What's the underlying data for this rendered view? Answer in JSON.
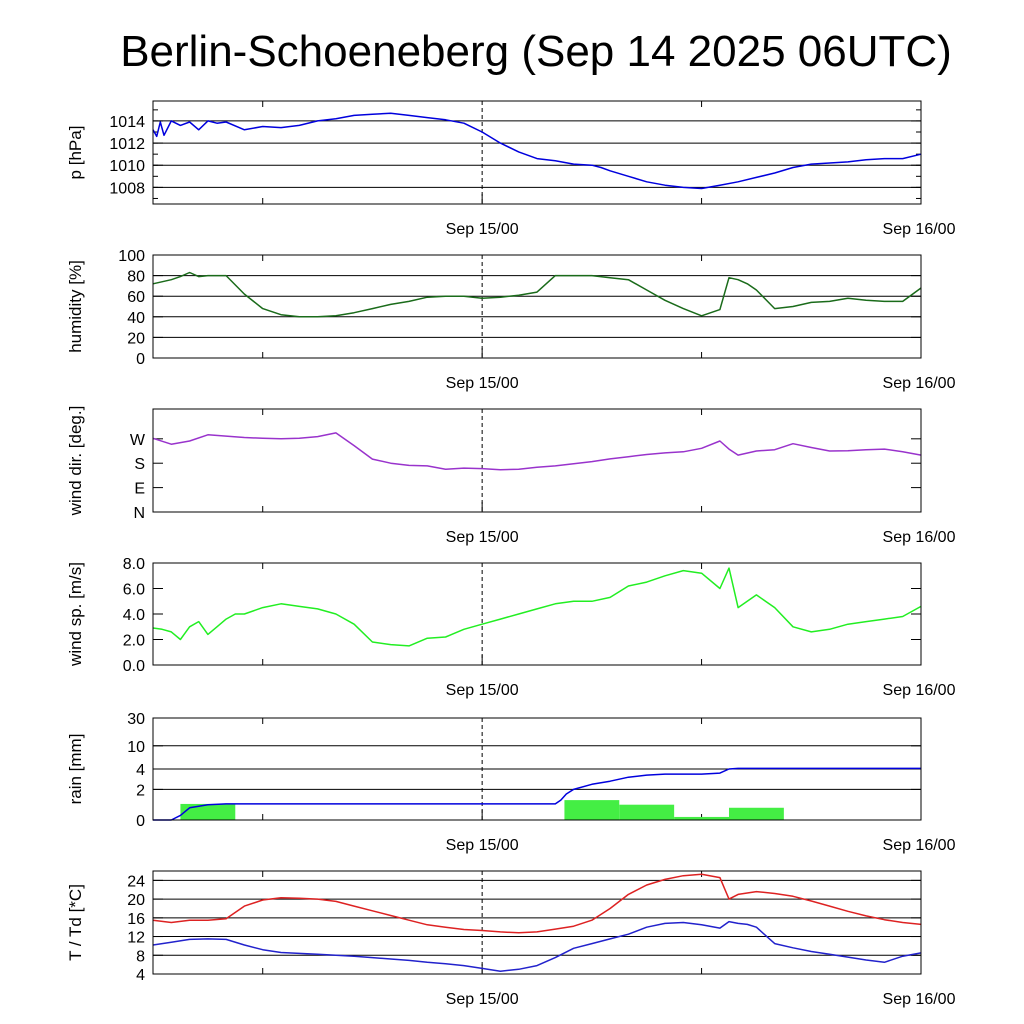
{
  "chart_data": {
    "title": "Berlin-Schoeneberg (Sep 14 2025 06UTC)",
    "x_ticks": [
      "Sep 15/00",
      "Sep 16/00"
    ],
    "x_range_hours": [
      0,
      42
    ],
    "panels": [
      {
        "id": "pressure",
        "type": "line",
        "ylabel": "p [hPa]",
        "ylim": [
          1006.5,
          1015.8
        ],
        "yticks": [
          1008,
          1010,
          1012,
          1014
        ],
        "ytick_labels": [
          "1008",
          "1010",
          "1012",
          "1014"
        ],
        "grid": true,
        "series": [
          {
            "name": "",
            "color": "#0000dd",
            "x": [
              0,
              0.2,
              0.4,
              0.6,
              1,
              1.5,
              2,
              2.5,
              3,
              3.5,
              4,
              5,
              6,
              7,
              8,
              9,
              10,
              11,
              12,
              13,
              14,
              15,
              16,
              17,
              18,
              19,
              20,
              21,
              22,
              23,
              24,
              24.5,
              25,
              26,
              27,
              28,
              29,
              30,
              31,
              32,
              33,
              34,
              35,
              36,
              37,
              38,
              39,
              40,
              41,
              42
            ],
            "y": [
              1013.2,
              1012.6,
              1013.9,
              1012.7,
              1014.0,
              1013.6,
              1013.9,
              1013.2,
              1014.0,
              1013.8,
              1013.9,
              1013.2,
              1013.5,
              1013.4,
              1013.6,
              1014.0,
              1014.2,
              1014.5,
              1014.6,
              1014.7,
              1014.5,
              1014.3,
              1014.1,
              1013.8,
              1013.0,
              1012.0,
              1011.2,
              1010.6,
              1010.4,
              1010.1,
              1010.0,
              1009.8,
              1009.5,
              1009.0,
              1008.5,
              1008.2,
              1008.0,
              1007.9,
              1008.2,
              1008.5,
              1008.9,
              1009.3,
              1009.8,
              1010.1,
              1010.2,
              1010.3,
              1010.5,
              1010.6,
              1010.6,
              1011.0
            ]
          }
        ]
      },
      {
        "id": "humidity",
        "type": "line",
        "ylabel": "humidity [%]",
        "ylim": [
          0,
          100
        ],
        "yticks": [
          0,
          20,
          40,
          60,
          80,
          100
        ],
        "ytick_labels": [
          "0",
          "20",
          "40",
          "60",
          "80",
          "100"
        ],
        "grid": true,
        "series": [
          {
            "name": "",
            "color": "#1a6b1a",
            "x": [
              0,
              1,
              1.5,
              2,
              2.5,
              3,
              4,
              5,
              6,
              7,
              8,
              9,
              10,
              11,
              12,
              13,
              14,
              15,
              16,
              17,
              18,
              19,
              20,
              21,
              22,
              23,
              24,
              25,
              26,
              27,
              28,
              29,
              30,
              31,
              31.5,
              32,
              32.5,
              33,
              34,
              35,
              36,
              37,
              38,
              39,
              40,
              41,
              42
            ],
            "y": [
              72,
              76,
              79,
              83,
              79,
              80,
              80,
              62,
              48,
              42,
              40,
              40,
              41,
              44,
              48,
              52,
              55,
              59,
              60,
              60,
              58,
              59,
              61,
              64,
              80,
              80,
              80,
              78,
              76,
              66,
              56,
              48,
              41,
              47,
              78,
              76,
              72,
              66,
              48,
              50,
              54,
              55,
              58,
              56,
              55,
              55,
              68
            ]
          }
        ]
      },
      {
        "id": "wind_direction",
        "type": "line",
        "ylabel": "wind dir. [deg.]",
        "ylim": [
          0,
          380
        ],
        "yticks": [
          0,
          90,
          180,
          270
        ],
        "ytick_labels": [
          "N",
          "E",
          "S",
          "W"
        ],
        "grid": false,
        "series": [
          {
            "name": "",
            "color": "#9933cc",
            "x": [
              0,
              1,
              2,
              3,
              4,
              5,
              6,
              7,
              8,
              9,
              10,
              11,
              12,
              13,
              14,
              15,
              16,
              17,
              18,
              19,
              20,
              21,
              22,
              23,
              24,
              25,
              26,
              27,
              28,
              29,
              30,
              31,
              31.5,
              32,
              33,
              34,
              35,
              36,
              37,
              38,
              39,
              40,
              41,
              42
            ],
            "y": [
              272,
              250,
              262,
              285,
              280,
              275,
              272,
              270,
              272,
              278,
              292,
              245,
              195,
              180,
              172,
              170,
              158,
              162,
              160,
              156,
              158,
              165,
              170,
              178,
              186,
              196,
              204,
              212,
              218,
              222,
              235,
              262,
              232,
              210,
              225,
              230,
              252,
              238,
              225,
              226,
              230,
              232,
              222,
              210
            ]
          }
        ]
      },
      {
        "id": "wind_speed",
        "type": "line",
        "ylabel": "wind sp. [m/s]",
        "ylim": [
          0,
          8
        ],
        "yticks": [
          0,
          2,
          4,
          6,
          8
        ],
        "ytick_labels": [
          "0.0",
          "2.0",
          "4.0",
          "6.0",
          "8.0"
        ],
        "grid": false,
        "series": [
          {
            "name": "",
            "color": "#22ee22",
            "x": [
              0,
              0.5,
              1,
              1.5,
              2,
              2.5,
              3,
              3.5,
              4,
              4.5,
              5,
              6,
              7,
              8,
              9,
              10,
              11,
              12,
              13,
              14,
              15,
              16,
              17,
              18,
              19,
              20,
              21,
              22,
              23,
              24,
              25,
              26,
              27,
              28,
              29,
              30,
              31,
              31.5,
              32,
              33,
              34,
              35,
              36,
              37,
              38,
              39,
              40,
              41,
              42
            ],
            "y": [
              2.9,
              2.8,
              2.6,
              2.0,
              3.0,
              3.4,
              2.4,
              3.0,
              3.6,
              4.0,
              4.0,
              4.5,
              4.8,
              4.6,
              4.4,
              4.0,
              3.2,
              1.8,
              1.6,
              1.5,
              2.1,
              2.2,
              2.8,
              3.2,
              3.6,
              4.0,
              4.4,
              4.8,
              5.0,
              5.0,
              5.3,
              6.2,
              6.5,
              7.0,
              7.4,
              7.2,
              6.0,
              7.6,
              4.5,
              5.5,
              4.5,
              3.0,
              2.6,
              2.8,
              3.2,
              3.4,
              3.6,
              3.8,
              4.6
            ]
          }
        ]
      },
      {
        "id": "rain",
        "type": "bar+line",
        "ylabel": "rain [mm]",
        "ylim": [
          0,
          30
        ],
        "yticks": [
          0,
          2,
          4,
          10,
          30
        ],
        "ytick_labels": [
          "0",
          "2",
          "4",
          "10",
          "30"
        ],
        "grid": true,
        "bars": [
          {
            "start": 1.5,
            "end": 4.5,
            "value": 1.05
          },
          {
            "start": 22.5,
            "end": 25.5,
            "value": 1.3
          },
          {
            "start": 25.5,
            "end": 28.5,
            "value": 1.0
          },
          {
            "start": 28.5,
            "end": 31.5,
            "value": 0.2
          },
          {
            "start": 31.5,
            "end": 34.5,
            "value": 0.8
          }
        ],
        "bar_color": "#44ee44",
        "series": [
          {
            "name": "",
            "color": "#0000dd",
            "x": [
              0,
              1,
              1.5,
              2,
              3,
              4,
              5,
              10,
              15,
              20,
              22,
              22.3,
              22.6,
              23,
              24,
              25,
              26,
              27,
              28,
              29,
              30,
              31,
              31.5,
              32,
              35,
              38,
              42
            ],
            "y": [
              0,
              0,
              0.3,
              0.8,
              1.0,
              1.05,
              1.05,
              1.05,
              1.05,
              1.05,
              1.05,
              1.3,
              1.7,
              2.0,
              2.5,
              2.8,
              3.2,
              3.4,
              3.5,
              3.5,
              3.5,
              3.6,
              4.0,
              4.1,
              4.1,
              4.1,
              4.1
            ]
          }
        ]
      },
      {
        "id": "temperature",
        "type": "line",
        "ylabel": "T / Td [*C]",
        "ylim": [
          4,
          26
        ],
        "yticks": [
          4,
          8,
          12,
          16,
          20,
          24
        ],
        "ytick_labels": [
          "4",
          "8",
          "12",
          "16",
          "20",
          "24"
        ],
        "grid": true,
        "series": [
          {
            "name": "",
            "color": "#dd2222",
            "x": [
              0,
              1,
              2,
              3,
              4,
              5,
              6,
              7,
              8,
              9,
              10,
              11,
              12,
              13,
              14,
              15,
              16,
              17,
              18,
              19,
              20,
              21,
              22,
              23,
              24,
              25,
              26,
              27,
              28,
              29,
              30,
              31,
              31.5,
              32,
              33,
              34,
              35,
              36,
              37,
              38,
              39,
              40,
              41,
              42
            ],
            "y": [
              15.5,
              15,
              15.5,
              15.5,
              15.8,
              18.5,
              19.8,
              20.3,
              20.2,
              20,
              19.5,
              18.5,
              17.5,
              16.5,
              15.5,
              14.5,
              14,
              13.5,
              13.3,
              13,
              12.8,
              13,
              13.6,
              14.2,
              15.5,
              18,
              21,
              23,
              24.2,
              25,
              25.3,
              24.6,
              20,
              21,
              21.6,
              21.2,
              20.6,
              19.6,
              18.5,
              17.4,
              16.4,
              15.6,
              15,
              14.6
            ]
          },
          {
            "name": "",
            "color": "#2222cc",
            "x": [
              0,
              1,
              2,
              3,
              4,
              5,
              6,
              7,
              8,
              9,
              10,
              11,
              12,
              13,
              14,
              15,
              16,
              17,
              18,
              19,
              20,
              21,
              22,
              23,
              24,
              25,
              26,
              27,
              28,
              29,
              30,
              31,
              31.5,
              32,
              32.5,
              33,
              34,
              35,
              36,
              37,
              38,
              39,
              40,
              41,
              42
            ],
            "y": [
              10.2,
              10.8,
              11.4,
              11.5,
              11.4,
              10.2,
              9.2,
              8.6,
              8.4,
              8.2,
              8,
              7.8,
              7.5,
              7.2,
              6.9,
              6.5,
              6.2,
              5.8,
              5.2,
              4.6,
              5,
              5.8,
              7.5,
              9.5,
              10.5,
              11.5,
              12.5,
              14,
              14.8,
              15,
              14.5,
              13.8,
              15.2,
              14.8,
              14.6,
              14,
              10.5,
              9.6,
              8.8,
              8.2,
              7.6,
              7,
              6.5,
              7.8,
              8.5
            ]
          }
        ]
      }
    ]
  }
}
